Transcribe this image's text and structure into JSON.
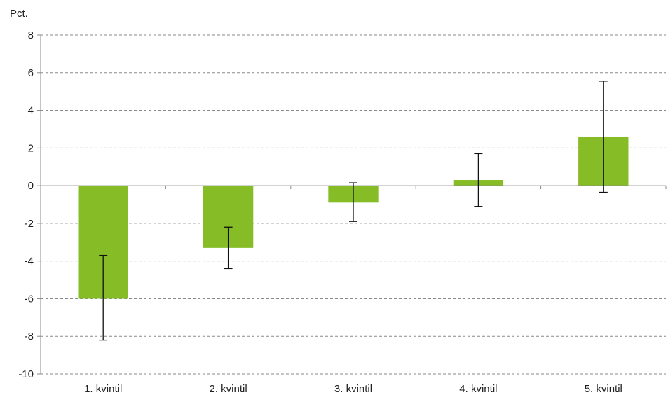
{
  "chart_data": {
    "type": "bar",
    "ylabel": "Pct.",
    "categories": [
      "1. kvintil",
      "2. kvintil",
      "3. kvintil",
      "4. kvintil",
      "5. kvintil"
    ],
    "values": [
      -6.0,
      -3.3,
      -0.9,
      0.3,
      2.6
    ],
    "error_low": [
      -8.2,
      -4.4,
      -1.9,
      -1.1,
      -0.35
    ],
    "error_high": [
      -3.7,
      -2.2,
      0.15,
      1.7,
      5.55
    ],
    "ylim": [
      -10,
      8
    ],
    "yticks": [
      "-10",
      "-8",
      "-6",
      "-4",
      "-2",
      "0",
      "2",
      "4",
      "6",
      "8"
    ],
    "bar_color": "#86bc25",
    "error_bar_color": "#111111",
    "grid": true,
    "legend": "none"
  }
}
